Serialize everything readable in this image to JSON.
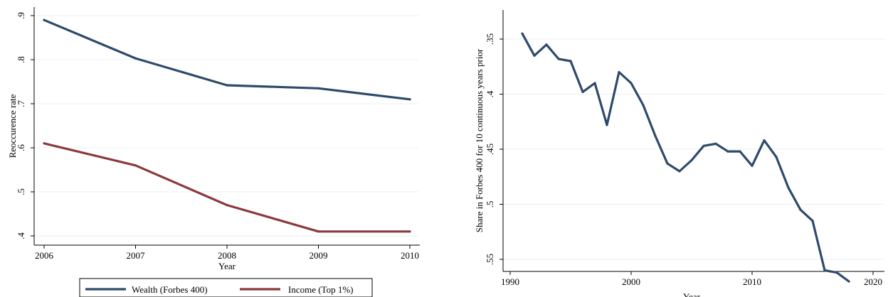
{
  "chart_data": [
    {
      "type": "line",
      "x": [
        2006,
        2007,
        2008,
        2009,
        2010
      ],
      "series": [
        {
          "name": "Wealth (Forbes 400)",
          "color": "#2e4a6b",
          "values": [
            0.89,
            0.803,
            0.742,
            0.735,
            0.71
          ]
        },
        {
          "name": "Income (Top 1%)",
          "color": "#8b3a3e",
          "values": [
            0.61,
            0.56,
            0.47,
            0.41,
            0.41
          ]
        }
      ],
      "xlabel": "Year",
      "ylabel": "Reoccurence rate",
      "xticks": [
        2006,
        2007,
        2008,
        2009,
        2010
      ],
      "xtick_labels": [
        "2006",
        "2007",
        "2008",
        "2009",
        "2010"
      ],
      "yticks": [
        0.4,
        0.5,
        0.6,
        0.7,
        0.8,
        0.9
      ],
      "ytick_labels": [
        ".4",
        ".5",
        ".6",
        ".7",
        ".8",
        ".9"
      ],
      "xlim": [
        2006,
        2010
      ],
      "ylim": [
        0.4,
        0.9
      ],
      "grid": true,
      "legend": "bottom"
    },
    {
      "type": "line",
      "x": [
        1991,
        1992,
        1993,
        1994,
        1995,
        1996,
        1997,
        1998,
        1999,
        2000,
        2001,
        2002,
        2003,
        2004,
        2005,
        2006,
        2007,
        2008,
        2009,
        2010,
        2011,
        2012,
        2013,
        2014,
        2015,
        2016,
        2017,
        2018
      ],
      "series": [
        {
          "color": "#2e4a6b",
          "values": [
            0.345,
            0.365,
            0.355,
            0.368,
            0.37,
            0.398,
            0.39,
            0.428,
            0.38,
            0.39,
            0.41,
            0.438,
            0.463,
            0.47,
            0.46,
            0.447,
            0.445,
            0.452,
            0.452,
            0.465,
            0.442,
            0.457,
            0.485,
            0.505,
            0.515,
            0.56,
            0.562,
            0.57
          ]
        }
      ],
      "xlabel": "Year",
      "ylabel": "Share in Forbes 400 for 10 continuous years prior",
      "xticks": [
        1990,
        2000,
        2010,
        2020
      ],
      "xtick_labels": [
        "1990",
        "2000",
        "2010",
        "2020"
      ],
      "yticks": [
        0.35,
        0.4,
        0.45,
        0.5,
        0.55
      ],
      "ytick_labels": [
        ".35",
        ".4",
        ".45",
        ".5",
        ".55"
      ],
      "xlim": [
        1990,
        2020
      ],
      "ylim": [
        0.35,
        0.55
      ],
      "grid": true
    }
  ]
}
